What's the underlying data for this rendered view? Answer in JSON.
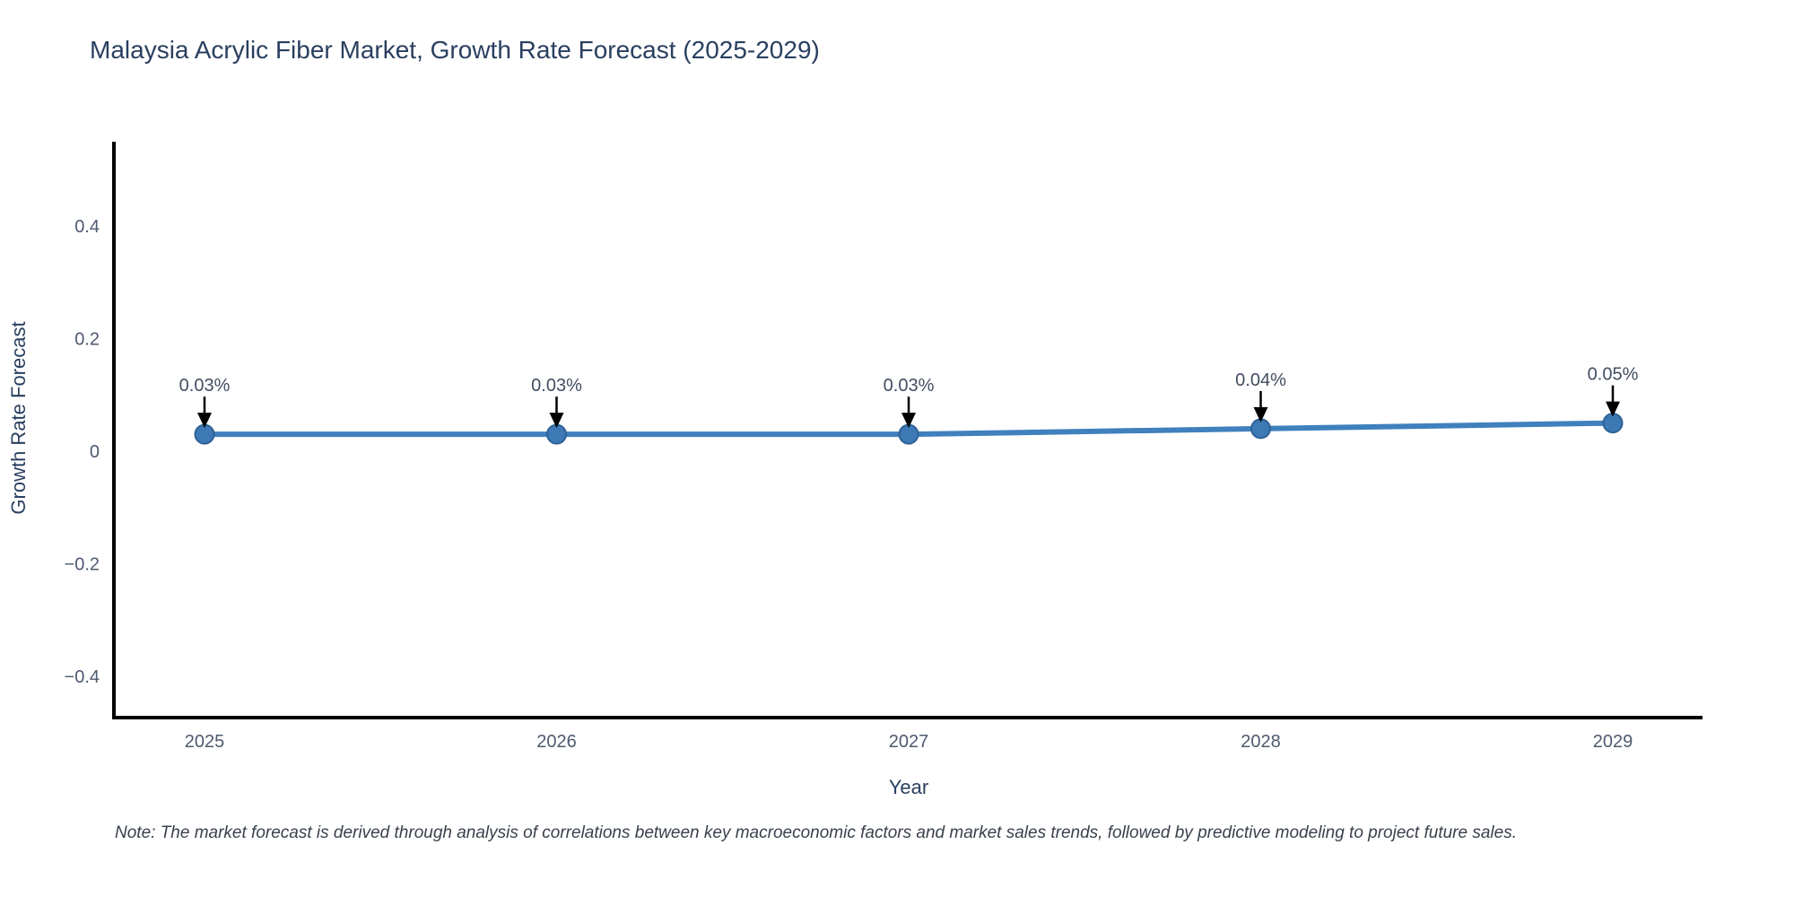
{
  "title": "Malaysia Acrylic Fiber Market, Growth Rate Forecast (2025-2029)",
  "note": "Note: The market forecast is derived through analysis of correlations between key macroeconomic factors and market sales trends, followed by predictive modeling to project future sales.",
  "colors": {
    "line": "#3f80bd",
    "marker_fill": "#3c79b5",
    "marker_edge": "#2e6295",
    "axis": "#000000",
    "arrow": "#000000",
    "title_text": "#2a3f5f",
    "tick_text": "#4d5a70",
    "annotation_text": "#414d61",
    "note_text": "#39414d",
    "background": "#ffffff"
  },
  "chart_data": {
    "type": "line",
    "title": "Malaysia Acrylic Fiber Market, Growth Rate Forecast (2025-2029)",
    "xlabel": "Year",
    "ylabel": "Growth Rate Forecast",
    "categories": [
      "2025",
      "2026",
      "2027",
      "2028",
      "2029"
    ],
    "series": [
      {
        "name": "Growth Rate Forecast",
        "values": [
          0.03,
          0.03,
          0.03,
          0.04,
          0.05
        ],
        "point_labels": [
          "0.03%",
          "0.03%",
          "0.03%",
          "0.04%",
          "0.05%"
        ]
      }
    ],
    "ylim": [
      -0.48,
      0.55
    ],
    "yticks": [
      0.4,
      0.2,
      0,
      -0.2,
      -0.4
    ],
    "ytick_labels": [
      "0.4",
      "0.2",
      "0",
      "−0.2",
      "−0.4"
    ],
    "grid": false,
    "legend": "none",
    "marker": "circle",
    "annotations": "value labels with downward arrows above each point"
  }
}
